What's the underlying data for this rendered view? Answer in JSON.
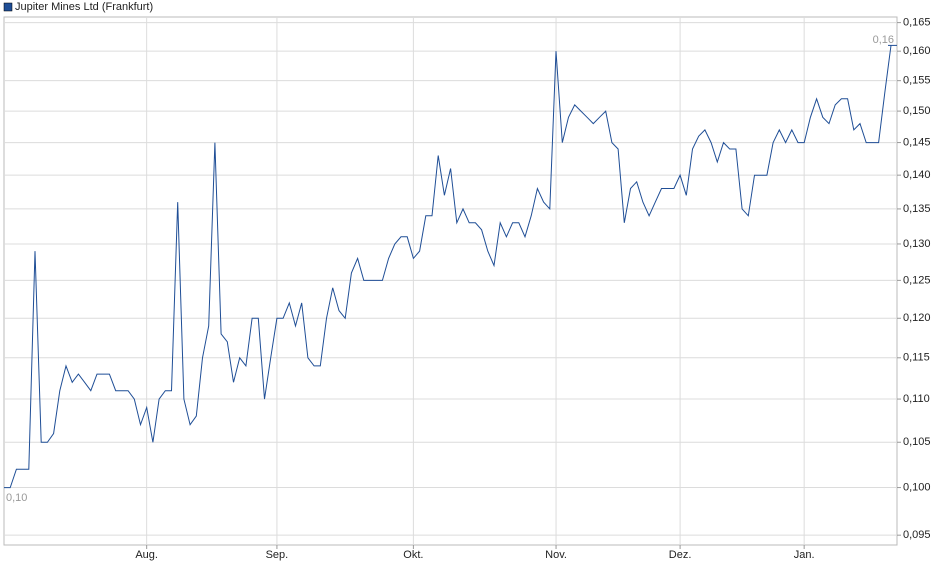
{
  "chart_data": {
    "type": "line",
    "categories": [
      null,
      null,
      null,
      null,
      null,
      null,
      null,
      null,
      null,
      null,
      null,
      null,
      null,
      null,
      null,
      null,
      null,
      null,
      null,
      null,
      null,
      null,
      null,
      "Aug.",
      null,
      null,
      null,
      null,
      null,
      null,
      null,
      null,
      null,
      null,
      null,
      null,
      null,
      null,
      null,
      null,
      null,
      null,
      null,
      null,
      "Sep.",
      null,
      null,
      null,
      null,
      null,
      null,
      null,
      null,
      null,
      null,
      null,
      null,
      null,
      null,
      null,
      null,
      null,
      null,
      null,
      null,
      null,
      "Okt.",
      null,
      null,
      null,
      null,
      null,
      null,
      null,
      null,
      null,
      null,
      null,
      null,
      null,
      null,
      null,
      null,
      null,
      null,
      null,
      null,
      null,
      null,
      "Nov.",
      null,
      null,
      null,
      null,
      null,
      null,
      null,
      null,
      null,
      null,
      null,
      null,
      null,
      null,
      null,
      null,
      null,
      null,
      null,
      "Dez.",
      null,
      null,
      null,
      null,
      null,
      null,
      null,
      null,
      null,
      null,
      null,
      null,
      null,
      null,
      null,
      null,
      null,
      null,
      null,
      "Jan.",
      null,
      null,
      null,
      null,
      null,
      null,
      null,
      null,
      null,
      null,
      null,
      null,
      null,
      null
    ],
    "series": [
      {
        "name": "Jupiter Mines Ltd (Frankfurt)",
        "color": "#1f4e96",
        "values": [
          0.1,
          0.1,
          0.102,
          0.102,
          0.102,
          0.129,
          0.105,
          0.105,
          0.106,
          0.111,
          0.114,
          0.112,
          0.113,
          0.112,
          0.111,
          0.113,
          0.113,
          0.113,
          0.111,
          0.111,
          0.111,
          0.11,
          0.107,
          0.109,
          0.105,
          0.11,
          0.111,
          0.111,
          0.136,
          0.11,
          0.107,
          0.108,
          0.115,
          0.119,
          0.145,
          0.118,
          0.117,
          0.112,
          0.115,
          0.114,
          0.12,
          0.12,
          0.11,
          0.115,
          0.12,
          0.12,
          0.122,
          0.119,
          0.122,
          0.115,
          0.114,
          0.114,
          0.12,
          0.124,
          0.121,
          0.12,
          0.126,
          0.128,
          0.125,
          0.125,
          0.125,
          0.125,
          0.128,
          0.13,
          0.131,
          0.131,
          0.128,
          0.129,
          0.134,
          0.134,
          0.143,
          0.137,
          0.141,
          0.133,
          0.135,
          0.133,
          0.133,
          0.132,
          0.129,
          0.127,
          0.133,
          0.131,
          0.133,
          0.133,
          0.131,
          0.134,
          0.138,
          0.136,
          0.135,
          0.16,
          0.145,
          0.149,
          0.151,
          0.15,
          0.149,
          0.148,
          0.149,
          0.15,
          0.145,
          0.144,
          0.133,
          0.138,
          0.139,
          0.136,
          0.134,
          0.136,
          0.138,
          0.138,
          0.138,
          0.14,
          0.137,
          0.144,
          0.146,
          0.147,
          0.145,
          0.142,
          0.145,
          0.144,
          0.144,
          0.135,
          0.134,
          0.14,
          0.14,
          0.14,
          0.145,
          0.147,
          0.145,
          0.147,
          0.145,
          0.145,
          0.149,
          0.152,
          0.149,
          0.148,
          0.151,
          0.152,
          0.152,
          0.147,
          0.148,
          0.145,
          0.145,
          0.145,
          0.153,
          0.161
        ]
      }
    ],
    "log_scale": true,
    "grid": true,
    "ylim": [
      0.094,
      0.166
    ],
    "yticks": [
      {
        "value": 0.095,
        "label": "0,095"
      },
      {
        "value": 0.1,
        "label": "0,100"
      },
      {
        "value": 0.105,
        "label": "0,105"
      },
      {
        "value": 0.11,
        "label": "0,110"
      },
      {
        "value": 0.115,
        "label": "0,115"
      },
      {
        "value": 0.12,
        "label": "0,120"
      },
      {
        "value": 0.125,
        "label": "0,125"
      },
      {
        "value": 0.13,
        "label": "0,130"
      },
      {
        "value": 0.135,
        "label": "0,135"
      },
      {
        "value": 0.14,
        "label": "0,140"
      },
      {
        "value": 0.145,
        "label": "0,145"
      },
      {
        "value": 0.15,
        "label": "0,150"
      },
      {
        "value": 0.155,
        "label": "0,155"
      },
      {
        "value": 0.16,
        "label": "0,160"
      },
      {
        "value": 0.165,
        "label": "0,165"
      }
    ],
    "annotations": [
      {
        "text": "0,16"
      },
      {
        "text": "0,10"
      }
    ]
  }
}
